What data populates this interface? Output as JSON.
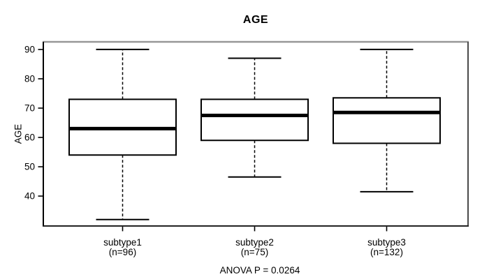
{
  "chart_data": {
    "type": "boxplot",
    "title": "AGE",
    "xlabel": "",
    "ylabel": "AGE",
    "ylim": [
      29.8,
      92.6
    ],
    "yticks": [
      40,
      50,
      60,
      70,
      80,
      90
    ],
    "grid": false,
    "legend": "none",
    "categories": [
      "subtype1",
      "subtype2",
      "subtype3"
    ],
    "category_sublabels": [
      "(n=96)",
      "(n=75)",
      "(n=132)"
    ],
    "series": [
      {
        "name": "subtype1",
        "n": 96,
        "whisker_low": 32,
        "q1": 54,
        "median": 63,
        "q3": 73,
        "whisker_high": 90
      },
      {
        "name": "subtype2",
        "n": 75,
        "whisker_low": 46.5,
        "q1": 59,
        "median": 67.5,
        "q3": 73,
        "whisker_high": 87
      },
      {
        "name": "subtype3",
        "n": 132,
        "whisker_low": 41.5,
        "q1": 58,
        "median": 68.5,
        "q3": 73.5,
        "whisker_high": 90
      }
    ],
    "annotation": "ANOVA P = 0.0264",
    "colors": {
      "box_stroke": "#000000",
      "box_fill": "#ffffff",
      "median": "#000000",
      "frame_top": "#979797",
      "frame_right": "#4a4a4a",
      "frame_bottom": "#222222",
      "axis": "#000000",
      "text": "#000000",
      "background": "#ffffff"
    }
  }
}
